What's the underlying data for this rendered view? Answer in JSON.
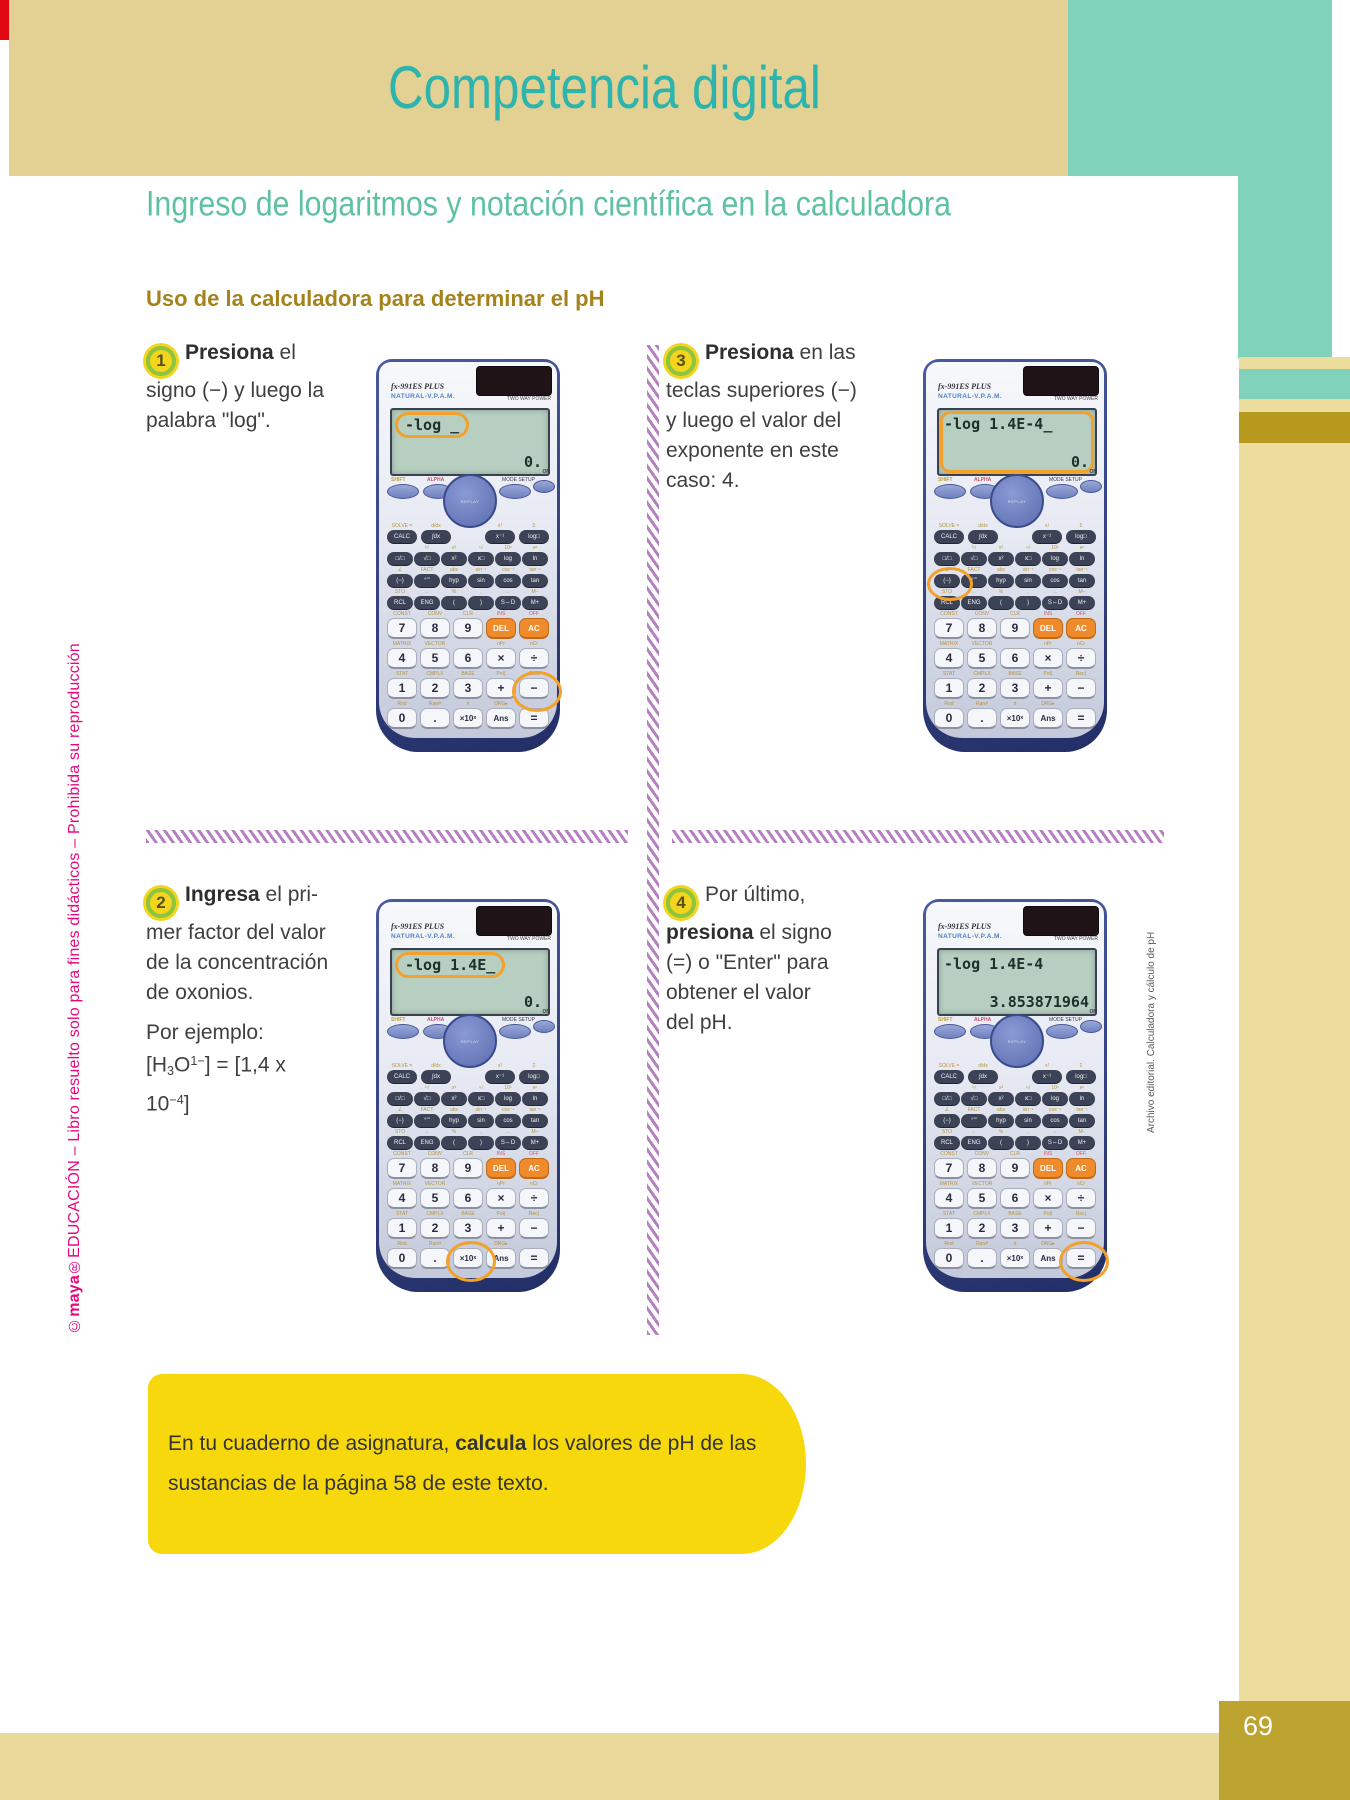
{
  "page": {
    "banner_title": "Competencia digital",
    "title": "Ingreso de logaritmos y notación científica en la calculadora",
    "subtitle": "Uso de la calculadora para determinar el pH",
    "page_number": "69",
    "side_text_segments": [
      {
        "t": "©"
      },
      {
        "b": "maya"
      },
      {
        "t": "®EDUCACIÓN – Libro resuelto solo para fines didácticos – Prohibida su reproducción"
      }
    ],
    "photo_credit": "Archivo editorial. Calculadora y cálculo de pH"
  },
  "colors": {
    "banner_bg": "#e3d193",
    "banner_text": "#2db4ac",
    "title_text": "#5ec2a2",
    "subtitle_text": "#a4831c",
    "teal_block": "#80d2ba",
    "cream_stripe": "#ecdc9e",
    "gold_band": "#b6991d",
    "page_box_gold": "#bda32f",
    "note_yellow": "#f6d80d",
    "badge_fill": "#f2d51c",
    "badge_ring": "#8fc43f",
    "highlight_orange": "#f2a12c",
    "hatch_purple": "#b57fc0",
    "side_text_pink": "#e5087e",
    "corner_red": "#e30613",
    "key_orange": "#ef8b2b",
    "lcd_green": "#b7cfc1"
  },
  "steps": [
    {
      "number": "1",
      "segments": [
        {
          "b": "Presiona"
        },
        {
          "t": " el"
        },
        {
          "br": 1
        },
        {
          "t": "signo (−) y luego la"
        },
        {
          "br": 1
        },
        {
          "t": "palabra \"log\"."
        }
      ]
    },
    {
      "number": "2",
      "segments": [
        {
          "b": "Ingresa"
        },
        {
          "t": " el pri-"
        },
        {
          "br": 1
        },
        {
          "t": "mer factor del valor"
        },
        {
          "br": 1
        },
        {
          "t": "de la concentración"
        },
        {
          "br": 1
        },
        {
          "t": "de oxonios."
        }
      ]
    },
    {
      "number": "3",
      "segments": [
        {
          "b": "Presiona"
        },
        {
          "t": " en las"
        },
        {
          "br": 1
        },
        {
          "t": "teclas superiores (−)"
        },
        {
          "br": 1
        },
        {
          "t": "y luego el valor del"
        },
        {
          "br": 1
        },
        {
          "t": "exponente en este"
        },
        {
          "br": 1
        },
        {
          "t": "caso: 4."
        }
      ]
    },
    {
      "number": "4",
      "segments": [
        {
          "t": "Por último,"
        },
        {
          "br": 1
        },
        {
          "b": "presiona"
        },
        {
          "t": " el signo"
        },
        {
          "br": 1
        },
        {
          "t": "(=) o \"Enter\" para"
        },
        {
          "br": 1
        },
        {
          "t": "obtener el valor"
        },
        {
          "br": 1
        },
        {
          "t": "del pH."
        }
      ]
    }
  ],
  "example": {
    "intro": "Por ejemplo:",
    "formula_segments": [
      {
        "t": "[H"
      },
      {
        "sub": "3"
      },
      {
        "t": "O"
      },
      {
        "sup": "1−"
      },
      {
        "t": "] = [1,4 x"
      },
      {
        "br": 1
      },
      {
        "t": "10"
      },
      {
        "sup": "−4"
      },
      {
        "t": "]"
      }
    ]
  },
  "note": {
    "segments": [
      {
        "t": "En tu cuaderno de asignatura, "
      },
      {
        "b": "calcula"
      },
      {
        "t": " los valores de pH de las"
      },
      {
        "br": 1
      },
      {
        "t": "sustancias de la página 58 de este texto."
      }
    ]
  },
  "calculator": {
    "brand_line1": "fx-991ES PLUS",
    "brand_line2": "NATURAL-V.P.A.M.",
    "power_label": "TWO WAY POWER",
    "labels": {
      "shift": "SHIFT",
      "alpha": "ALPHA",
      "mode": "MODE SETUP",
      "on": "ON",
      "replay": "REPLAY"
    },
    "fn_top": {
      "left": [
        {
          "k": "CALC",
          "a": "SOLVE ="
        },
        {
          "k": "∫dx",
          "a": "d/dx"
        }
      ],
      "right": [
        {
          "k": "x⁻¹",
          "a": "x!"
        },
        {
          "k": "log□",
          "a": "Σ"
        }
      ]
    },
    "fn_rows": [
      [
        {
          "k": "□/□"
        },
        {
          "k": "√□",
          "a": "³√"
        },
        {
          "k": "x²",
          "a": "x³"
        },
        {
          "k": "x□",
          "a": "ⁿ√"
        },
        {
          "k": "log",
          "a": "10ˣ"
        },
        {
          "k": "ln",
          "a": "eˣ"
        }
      ],
      [
        {
          "k": "(−)",
          "a": "∠"
        },
        {
          "k": "°’”",
          "a": "FACT"
        },
        {
          "k": "hyp",
          "a": "abs"
        },
        {
          "k": "sin",
          "a": "sin⁻¹"
        },
        {
          "k": "cos",
          "a": "cos⁻¹"
        },
        {
          "k": "tan",
          "a": "tan⁻¹"
        }
      ],
      [
        {
          "k": "RCL",
          "a": "STO"
        },
        {
          "k": "ENG",
          "a": "←"
        },
        {
          "k": "(",
          "a": "%"
        },
        {
          "k": ")",
          "a": ","
        },
        {
          "k": "S⇔D",
          "a": "↔"
        },
        {
          "k": "M+",
          "a": "M−"
        }
      ]
    ],
    "num_rows": [
      [
        {
          "k": "7",
          "a": "CONST"
        },
        {
          "k": "8",
          "a": "CONV"
        },
        {
          "k": "9",
          "a": "CLR"
        },
        {
          "k": "DEL",
          "a": "INS",
          "ar": 1,
          "orange": 1
        },
        {
          "k": "AC",
          "a": "OFF",
          "ar": 1,
          "orange": 1
        }
      ],
      [
        {
          "k": "4",
          "a": "MATRIX"
        },
        {
          "k": "5",
          "a": "VECTOR"
        },
        {
          "k": "6"
        },
        {
          "k": "×",
          "a": "nPr"
        },
        {
          "k": "÷",
          "a": "nCr"
        }
      ],
      [
        {
          "k": "1",
          "a": "STAT"
        },
        {
          "k": "2",
          "a": "CMPLX"
        },
        {
          "k": "3",
          "a": "BASE"
        },
        {
          "k": "+",
          "a": "Pol("
        },
        {
          "k": "−",
          "a": "Rec("
        }
      ],
      [
        {
          "k": "0",
          "a": "Rnd"
        },
        {
          "k": ".",
          "a": "Ran#"
        },
        {
          "k": "×10ˣ",
          "a": "π"
        },
        {
          "k": "Ans",
          "a": "DRG▸"
        },
        {
          "k": "="
        }
      ]
    ]
  },
  "calculators": [
    {
      "display": {
        "line1": "-log _",
        "line2": "0."
      },
      "highlight": "partial",
      "circle": {
        "pad": "num",
        "row": 2,
        "col": 4
      }
    },
    {
      "display": {
        "line1": "-log 1.4E_",
        "line2": "0."
      },
      "highlight": "partial",
      "circle": {
        "pad": "num",
        "row": 3,
        "col": 2
      }
    },
    {
      "display": {
        "line1": "-log 1.4E-4_",
        "line2": "0."
      },
      "highlight": "full",
      "circle": {
        "pad": "fn",
        "row": 1,
        "col": 0
      }
    },
    {
      "display": {
        "line1": "-log 1.4E-4",
        "line2": "3.853871964"
      },
      "highlight": "none",
      "circle": {
        "pad": "num",
        "row": 3,
        "col": 4
      }
    }
  ]
}
